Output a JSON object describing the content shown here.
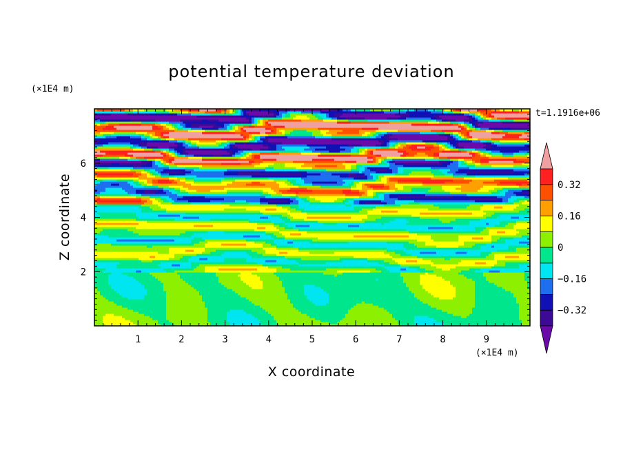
{
  "chart_data": {
    "type": "heatmap",
    "title": "potential temperature deviation",
    "xlabel": "X coordinate",
    "ylabel": "Z coordinate",
    "x_unit": "(×1E4 m)",
    "y_unit": "(×1E4 m)",
    "xlim": [
      0,
      10
    ],
    "ylim": [
      0,
      8
    ],
    "x_ticks": [
      "1",
      "2",
      "3",
      "4",
      "5",
      "6",
      "7",
      "8",
      "9"
    ],
    "y_ticks": [
      "2",
      "4",
      "6"
    ],
    "time_label": "t=1.1916e+06",
    "colorbar": {
      "levels": [
        -0.4,
        -0.32,
        -0.24,
        -0.16,
        -0.08,
        0,
        0.08,
        0.16,
        0.24,
        0.32,
        0.4
      ],
      "tick_labels": [
        "0.32",
        "0.16",
        "0",
        "−0.16",
        "−0.32"
      ],
      "tick_values": [
        0.32,
        0.16,
        0,
        -0.16,
        -0.32
      ],
      "colors": [
        "#6a0aa8",
        "#3c0a96",
        "#1010b4",
        "#1e6ef0",
        "#00e6f0",
        "#00e68c",
        "#8cf000",
        "#ffff00",
        "#ffa000",
        "#ff5000",
        "#ff2020",
        "#f0a0a0"
      ],
      "extend": "both"
    }
  }
}
